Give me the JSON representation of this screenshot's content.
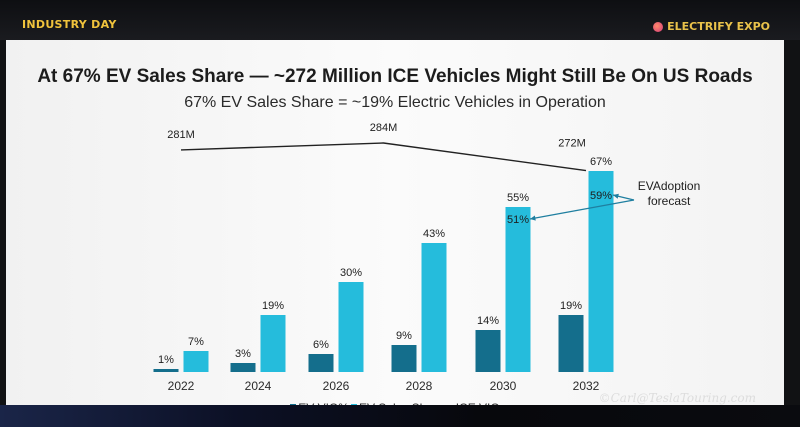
{
  "header": {
    "left_tag": "INDUSTRY DAY",
    "right_tag": "ELECTRIFY EXPO"
  },
  "watermark": "©Carl@TeslaTouring.com",
  "chart_data": {
    "type": "bar",
    "title": "At 67% EV Sales Share — ~272 Million ICE Vehicles Might Still Be On US Roads",
    "subtitle": "67% EV Sales Share = ~19% Electric Vehicles in Operation",
    "categories": [
      "2022",
      "2024",
      "2026",
      "2028",
      "2030",
      "2032"
    ],
    "series": [
      {
        "name": "EV VIO%",
        "color": "#146e8c",
        "values": [
          1,
          3,
          6,
          9,
          14,
          19
        ],
        "labels": [
          "1%",
          "3%",
          "6%",
          "9%",
          "14%",
          "19%"
        ]
      },
      {
        "name": "EV Sales Share",
        "color": "#25bcdc",
        "values": [
          7,
          19,
          30,
          43,
          55,
          67
        ],
        "labels": [
          "7%",
          "19%",
          "30%",
          "43%",
          "55%",
          "67%"
        ]
      }
    ],
    "line_series": {
      "name": "ICE VIO",
      "color": "#222222",
      "points": [
        {
          "category": "2022",
          "value": 281,
          "label": "281M"
        },
        {
          "category": "2027",
          "value": 284,
          "label": "284M"
        },
        {
          "category": "2032",
          "value": 272,
          "label": "272M"
        }
      ]
    },
    "forecast": {
      "label_line1": "EVAdoption",
      "label_line2": "forecast",
      "points": [
        {
          "category": "2030",
          "value": 51,
          "label": "51%"
        },
        {
          "category": "2032",
          "value": 59,
          "label": "59%"
        }
      ]
    },
    "legend": {
      "ev_vio": "EV VIO%",
      "ev_sales": "EV Sales Share",
      "ice_vio": "ICE VIO"
    }
  }
}
